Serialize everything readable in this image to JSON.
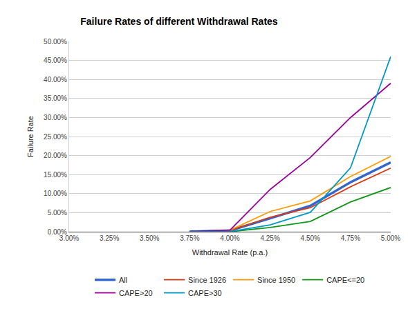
{
  "chart_data": {
    "type": "line",
    "title": "Failure Rates of different Withdrawal Rates",
    "x_label": "Withdrawal Rate (p.a.)",
    "y_label": "Failure Rate",
    "x": [
      3.0,
      3.25,
      3.5,
      3.75,
      4.0,
      4.25,
      4.5,
      4.75,
      5.0
    ],
    "series": [
      {
        "name": "All",
        "color": "#3366cc",
        "values": [
          null,
          null,
          null,
          0,
          0.3,
          3.5,
          6.8,
          13,
          18.2
        ]
      },
      {
        "name": "Since 1926",
        "color": "#dc3912",
        "values": [
          null,
          null,
          null,
          0,
          0.3,
          3.8,
          6.3,
          11.8,
          16.7
        ]
      },
      {
        "name": "Since 1950",
        "color": "#ff9900",
        "values": [
          null,
          null,
          null,
          0,
          0.4,
          5.3,
          8.1,
          14.5,
          19.8
        ]
      },
      {
        "name": "CAPE<=20",
        "color": "#109618",
        "values": [
          null,
          null,
          null,
          0,
          0,
          1.1,
          2.7,
          7.8,
          11.6
        ]
      },
      {
        "name": "CAPE>20",
        "color": "#990099",
        "values": [
          null,
          null,
          null,
          0.1,
          0.4,
          11.1,
          19.5,
          30,
          39
        ]
      },
      {
        "name": "CAPE>30",
        "color": "#0099c6",
        "values": [
          null,
          null,
          null,
          0,
          0,
          1.8,
          5.1,
          16.8,
          46
        ]
      }
    ],
    "xlim": [
      3.0,
      5.0
    ],
    "xticks": [
      {
        "value": 3.0,
        "label": "3.00%"
      },
      {
        "value": 3.25,
        "label": "3.25%"
      },
      {
        "value": 3.5,
        "label": "3.50%"
      },
      {
        "value": 3.75,
        "label": "3.75%"
      },
      {
        "value": 4.0,
        "label": "4.00%"
      },
      {
        "value": 4.25,
        "label": "4.25%"
      },
      {
        "value": 4.5,
        "label": "4.50%"
      },
      {
        "value": 4.75,
        "label": "4.75%"
      },
      {
        "value": 5.0,
        "label": "5.00%"
      }
    ],
    "ylim": [
      0,
      50
    ],
    "yticks": [
      {
        "value": 0,
        "label": "0.00%"
      },
      {
        "value": 5,
        "label": "5.00%"
      },
      {
        "value": 10,
        "label": "10.00%"
      },
      {
        "value": 15,
        "label": "15.00%"
      },
      {
        "value": 20,
        "label": "20.00%"
      },
      {
        "value": 25,
        "label": "25.00%"
      },
      {
        "value": 30,
        "label": "30.00%"
      },
      {
        "value": 35,
        "label": "35.00%"
      },
      {
        "value": 40,
        "label": "40.00%"
      },
      {
        "value": 45,
        "label": "45.00%"
      },
      {
        "value": 50,
        "label": "50.00%"
      }
    ],
    "grid": true,
    "legend": "bottom"
  }
}
